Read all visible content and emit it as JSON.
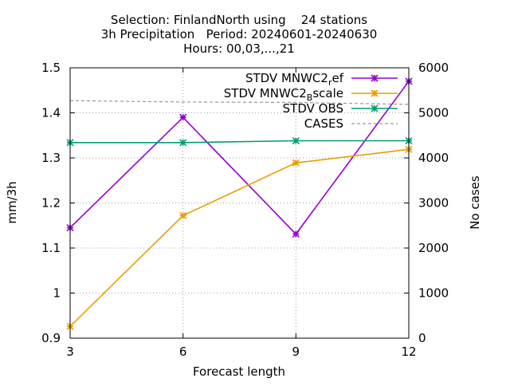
{
  "chart_data": {
    "type": "line",
    "title_lines": [
      "Selection: FinlandNorth using    24 stations",
      "3h Precipitation   Period: 20240601-20240630",
      "Hours: 00,03,...,21"
    ],
    "xlabel": "Forecast length",
    "ylabel": "mm/3h",
    "y2label": "No cases",
    "x": [
      3,
      6,
      9,
      12
    ],
    "xlim": [
      3,
      12
    ],
    "ylim": [
      0.9,
      1.5
    ],
    "y2lim": [
      0,
      6000
    ],
    "xticks": [
      "3",
      "6",
      "9",
      "12"
    ],
    "yticks": [
      "0.9",
      "1",
      "1.1",
      "1.2",
      "1.3",
      "1.4",
      "1.5"
    ],
    "y2ticks": [
      "0",
      "1000",
      "2000",
      "3000",
      "4000",
      "5000",
      "6000"
    ],
    "grid": true,
    "legend_position": "top-right",
    "series": [
      {
        "name": "STDV MNWC2",
        "name_sub": "r",
        "name_suffix": "ef",
        "axis": "y1",
        "color": "#9400d3",
        "style": "solid-markers",
        "values": [
          1.145,
          1.39,
          1.131,
          1.47
        ]
      },
      {
        "name": "STDV MNWC2",
        "name_sub": "B",
        "name_suffix": "scale",
        "axis": "y1",
        "color": "#e69f00",
        "style": "solid-markers",
        "values": [
          0.926,
          1.172,
          1.289,
          1.319
        ]
      },
      {
        "name": "STDV OBS",
        "name_sub": "",
        "name_suffix": "",
        "axis": "y1",
        "color": "#009e73",
        "style": "solid-markers",
        "values": [
          1.334,
          1.334,
          1.338,
          1.338
        ]
      },
      {
        "name": "CASES",
        "name_sub": "",
        "name_suffix": "",
        "axis": "y2",
        "color": "#999999",
        "style": "dashed",
        "values": [
          5270,
          5240,
          5230,
          5190
        ]
      }
    ]
  }
}
